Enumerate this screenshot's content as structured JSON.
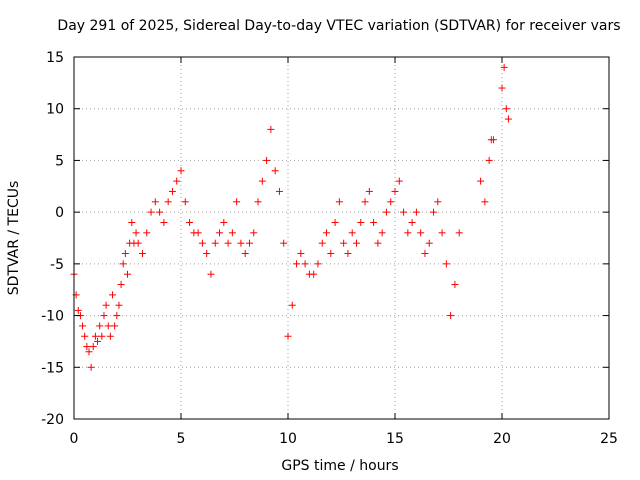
{
  "chart_data": {
    "type": "scatter",
    "title": "Day 291 of 2025, Sidereal Day-to-day VTEC variation (SDTVAR) for receiver vars",
    "xlabel": "GPS time / hours",
    "ylabel": "SDTVAR / TECUs",
    "xlim": [
      0,
      25
    ],
    "ylim": [
      -20,
      15
    ],
    "xticks": [
      0,
      5,
      10,
      15,
      20,
      25
    ],
    "yticks": [
      -20,
      -15,
      -10,
      -5,
      0,
      5,
      10,
      15
    ],
    "xtick_labels": [
      "0",
      "5",
      "10",
      "15",
      "20",
      "25"
    ],
    "ytick_labels": [
      "-20",
      "-15",
      "-10",
      "-5",
      "0",
      "5",
      "10",
      "15"
    ],
    "grid": true,
    "marker": "+",
    "color": "#ff0000",
    "series": [
      {
        "name": "SDTVAR",
        "x": [
          0.0,
          0.1,
          0.2,
          0.3,
          0.4,
          0.5,
          0.6,
          0.7,
          0.8,
          0.9,
          1.0,
          1.1,
          1.2,
          1.3,
          1.4,
          1.5,
          1.6,
          1.7,
          1.8,
          1.9,
          2.0,
          2.1,
          2.2,
          2.3,
          2.4,
          2.5,
          2.6,
          2.7,
          2.8,
          2.9,
          3.0,
          3.2,
          3.4,
          3.6,
          3.8,
          4.0,
          4.2,
          4.4,
          4.6,
          4.8,
          5.0,
          5.2,
          5.4,
          5.6,
          5.8,
          6.0,
          6.2,
          6.4,
          6.6,
          6.8,
          7.0,
          7.2,
          7.4,
          7.6,
          7.8,
          8.0,
          8.2,
          8.4,
          8.6,
          8.8,
          9.0,
          9.2,
          9.4,
          9.6,
          9.8,
          10.0,
          10.2,
          10.4,
          10.6,
          10.8,
          11.0,
          11.2,
          11.4,
          11.6,
          11.8,
          12.0,
          12.2,
          12.4,
          12.6,
          12.8,
          13.0,
          13.2,
          13.4,
          13.6,
          13.8,
          14.0,
          14.2,
          14.4,
          14.6,
          14.8,
          15.0,
          15.2,
          15.4,
          15.6,
          15.8,
          16.0,
          16.2,
          16.4,
          16.6,
          16.8,
          17.0,
          17.2,
          17.4,
          17.6,
          17.8,
          18.0,
          19.0,
          19.2,
          19.4,
          19.5,
          19.6,
          20.0,
          20.1,
          20.2,
          20.3
        ],
        "y": [
          -6.0,
          -8.0,
          -9.5,
          -10.0,
          -11.0,
          -12.0,
          -13.0,
          -13.5,
          -15.0,
          -13.0,
          -12.0,
          -12.5,
          -11.0,
          -12.0,
          -10.0,
          -9.0,
          -11.0,
          -12.0,
          -8.0,
          -11.0,
          -10.0,
          -9.0,
          -7.0,
          -5.0,
          -4.0,
          -6.0,
          -3.0,
          -1.0,
          -3.0,
          -2.0,
          -3.0,
          -4.0,
          -2.0,
          0.0,
          1.0,
          0.0,
          -1.0,
          1.0,
          2.0,
          3.0,
          4.0,
          1.0,
          -1.0,
          -2.0,
          -2.0,
          -3.0,
          -4.0,
          -6.0,
          -3.0,
          -2.0,
          -1.0,
          -3.0,
          -2.0,
          1.0,
          -3.0,
          -4.0,
          -3.0,
          -2.0,
          1.0,
          3.0,
          5.0,
          8.0,
          4.0,
          2.0,
          -3.0,
          -12.0,
          -9.0,
          -5.0,
          -4.0,
          -5.0,
          -6.0,
          -6.0,
          -5.0,
          -3.0,
          -2.0,
          -4.0,
          -1.0,
          1.0,
          -3.0,
          -4.0,
          -2.0,
          -3.0,
          -1.0,
          1.0,
          2.0,
          -1.0,
          -3.0,
          -2.0,
          0.0,
          1.0,
          2.0,
          3.0,
          0.0,
          -2.0,
          -1.0,
          0.0,
          -2.0,
          -4.0,
          -3.0,
          0.0,
          1.0,
          -2.0,
          -5.0,
          -10.0,
          -7.0,
          -2.0,
          3.0,
          1.0,
          5.0,
          7.0,
          7.0,
          12.0,
          14.0,
          10.0,
          9.0
        ]
      }
    ]
  }
}
